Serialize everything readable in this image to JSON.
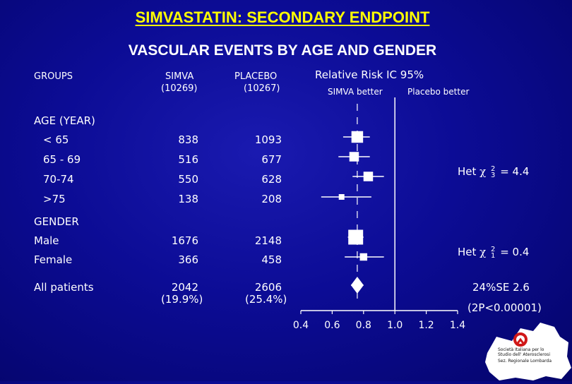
{
  "title": "SIMVASTATIN: SECONDARY  ENDPOINT",
  "subtitle": "VASCULAR EVENTS BY AGE AND GENDER",
  "headers": {
    "groups": "GROUPS",
    "simva": "SIMVA",
    "simva_n": "(10269)",
    "placebo": "PLACEBO",
    "placebo_n": "(10267)",
    "rr_title": "Relative Risk IC 95%",
    "simva_better": "SIMVA better",
    "placebo_better": "Placebo better"
  },
  "sections": {
    "age": "AGE (YEAR)",
    "gender": "GENDER"
  },
  "rows": [
    {
      "label": "< 65",
      "simva": "838",
      "placebo": "1093"
    },
    {
      "label": "65 - 69",
      "simva": "516",
      "placebo": "677"
    },
    {
      "label": "70-74",
      "simva": "550",
      "placebo": "628"
    },
    {
      "label": ">75",
      "simva": "138",
      "placebo": "208"
    },
    {
      "label": "Male",
      "simva": "1676",
      "placebo": "2148"
    },
    {
      "label": "Female",
      "simva": "366",
      "placebo": "458"
    },
    {
      "label": "All patients",
      "simva": "2042",
      "placebo": "2606",
      "simva_pct": "(19.9%)",
      "placebo_pct": "(25.4%)"
    }
  ],
  "het_age": {
    "prefix": "Het",
    "symbol": "χ",
    "sup": "2",
    "sub": "3",
    "value": "= 4.4"
  },
  "het_gender": {
    "prefix": "Het",
    "symbol": "χ",
    "sup": "2",
    "sub": "1",
    "value": "= 0.4"
  },
  "summary": {
    "reduction": "24%SE 2.6",
    "p_value": "(2P<0.00001)"
  },
  "logo": {
    "line1": "Società Italiana per lo",
    "line2": "Studio dell' Aterosclerosi",
    "line3": "Sez. Regionale Lombarda"
  },
  "colors": {
    "background": "#0c0c95",
    "title": "#ffff00",
    "text": "#ffffff"
  },
  "chart_data": {
    "type": "scatter",
    "title": "Relative Risk IC 95%",
    "x_ticks": [
      "0.4",
      "0.6",
      "0.8",
      "1.0",
      "1.2",
      "1.4"
    ],
    "xlim": [
      0.4,
      1.4
    ],
    "reference_line": 1.0,
    "annotations": [
      "SIMVA better",
      "Placebo better"
    ],
    "points": [
      {
        "label": "< 65",
        "rr": 0.76,
        "ci_low": 0.67,
        "ci_high": 0.84,
        "size": 0.55,
        "marker": "square"
      },
      {
        "label": "65 - 69",
        "rr": 0.74,
        "ci_low": 0.64,
        "ci_high": 0.84,
        "size": 0.45,
        "marker": "square"
      },
      {
        "label": "70-74",
        "rr": 0.83,
        "ci_low": 0.73,
        "ci_high": 0.93,
        "size": 0.45,
        "marker": "square"
      },
      {
        "label": ">75",
        "rr": 0.66,
        "ci_low": 0.53,
        "ci_high": 0.85,
        "size": 0.2,
        "marker": "square"
      },
      {
        "label": "Male",
        "rr": 0.75,
        "ci_low": 0.7,
        "ci_high": 0.8,
        "size": 0.7,
        "marker": "square"
      },
      {
        "label": "Female",
        "rr": 0.8,
        "ci_low": 0.68,
        "ci_high": 0.93,
        "size": 0.35,
        "marker": "square"
      },
      {
        "label": "All patients",
        "rr": 0.76,
        "ci_low": 0.72,
        "ci_high": 0.8,
        "size": 0.6,
        "marker": "diamond"
      }
    ]
  }
}
